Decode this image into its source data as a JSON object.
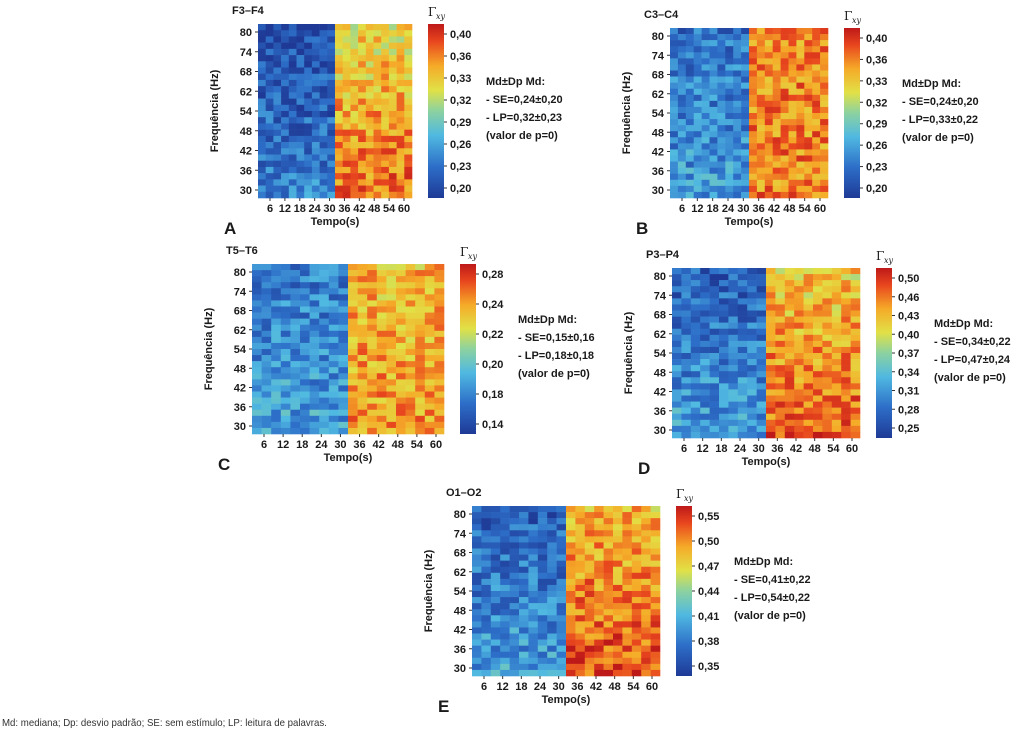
{
  "chart_data": [
    {
      "type": "heatmap",
      "panel": "A",
      "title": "F3–F4",
      "xlabel": "Tempo(s)",
      "ylabel": "Frequência (Hz)",
      "x_ticks": [
        "6",
        "12",
        "18",
        "24",
        "30",
        "36",
        "42",
        "48",
        "54",
        "60"
      ],
      "y_ticks": [
        "80",
        "74",
        "68",
        "62",
        "54",
        "48",
        "42",
        "36",
        "30"
      ],
      "colorbar_title": "Γ",
      "colorbar_subscript": "xy",
      "colorbar_ticks": [
        "0,40",
        "0,36",
        "0,33",
        "0,32",
        "0,29",
        "0,26",
        "0,23",
        "0,20"
      ],
      "colorbar_range": [
        0.2,
        0.42
      ],
      "stats": [
        "Md±Dp Md:",
        "- SE=0,24±0,20",
        "- LP=0,32±0,23",
        "(valor de p=0)"
      ],
      "mean_se": 0.24,
      "mean_lp": 0.32
    },
    {
      "type": "heatmap",
      "panel": "B",
      "title": "C3–C4",
      "xlabel": "Tempo(s)",
      "ylabel": "Frequência (Hz)",
      "x_ticks": [
        "6",
        "12",
        "18",
        "24",
        "30",
        "36",
        "42",
        "48",
        "54",
        "60"
      ],
      "y_ticks": [
        "80",
        "74",
        "68",
        "62",
        "54",
        "48",
        "42",
        "36",
        "30"
      ],
      "colorbar_title": "Γ",
      "colorbar_subscript": "xy",
      "colorbar_ticks": [
        "0,40",
        "0,36",
        "0,33",
        "0,32",
        "0,29",
        "0,26",
        "0,23",
        "0,20"
      ],
      "colorbar_range": [
        0.2,
        0.42
      ],
      "stats": [
        "Md±Dp Md:",
        "- SE=0,24±0,20",
        "- LP=0,33±0,22",
        "(valor de p=0)"
      ],
      "mean_se": 0.24,
      "mean_lp": 0.33
    },
    {
      "type": "heatmap",
      "panel": "C",
      "title": "T5–T6",
      "xlabel": "Tempo(s)",
      "ylabel": "Frequência (Hz)",
      "x_ticks": [
        "6",
        "12",
        "18",
        "24",
        "30",
        "36",
        "42",
        "48",
        "54",
        "60"
      ],
      "y_ticks": [
        "80",
        "74",
        "68",
        "62",
        "54",
        "48",
        "42",
        "36",
        "30"
      ],
      "colorbar_title": "Γ",
      "colorbar_subscript": "xy",
      "colorbar_ticks": [
        "0,28",
        "0,24",
        "0,22",
        "0,20",
        "0,18",
        "0,14"
      ],
      "colorbar_range": [
        0.13,
        0.29
      ],
      "stats": [
        "Md±Dp Md:",
        "- SE=0,15±0,16",
        "- LP=0,18±0,18",
        "(valor de p=0)"
      ],
      "mean_se": 0.15,
      "mean_lp": 0.18
    },
    {
      "type": "heatmap",
      "panel": "D",
      "title": "P3–P4",
      "xlabel": "Tempo(s)",
      "ylabel": "Frequência (Hz)",
      "x_ticks": [
        "6",
        "12",
        "18",
        "24",
        "30",
        "36",
        "42",
        "48",
        "54",
        "60"
      ],
      "y_ticks": [
        "80",
        "74",
        "68",
        "62",
        "54",
        "48",
        "42",
        "36",
        "30"
      ],
      "colorbar_title": "Γ",
      "colorbar_subscript": "xy",
      "colorbar_ticks": [
        "0,50",
        "0,46",
        "0,43",
        "0,40",
        "0,37",
        "0,34",
        "0,31",
        "0,28",
        "0,25"
      ],
      "colorbar_range": [
        0.24,
        0.52
      ],
      "stats": [
        "Md±Dp Md:",
        "- SE=0,34±0,22",
        "- LP=0,47±0,24",
        "(valor de p=0)"
      ],
      "mean_se": 0.34,
      "mean_lp": 0.47
    },
    {
      "type": "heatmap",
      "panel": "E",
      "title": "O1–O2",
      "xlabel": "Tempo(s)",
      "ylabel": "Frequência (Hz)",
      "x_ticks": [
        "6",
        "12",
        "18",
        "24",
        "30",
        "36",
        "42",
        "48",
        "54",
        "60"
      ],
      "y_ticks": [
        "80",
        "74",
        "68",
        "62",
        "54",
        "48",
        "42",
        "36",
        "30"
      ],
      "colorbar_title": "Γ",
      "colorbar_subscript": "xy",
      "colorbar_ticks": [
        "0,55",
        "0,50",
        "0,47",
        "0,44",
        "0,41",
        "0,38",
        "0,35"
      ],
      "colorbar_range": [
        0.33,
        0.57
      ],
      "stats": [
        "Md±Dp Md:",
        "- SE=0,41±0,22",
        "- LP=0,54±0,22",
        "(valor de p=0)"
      ],
      "mean_se": 0.41,
      "mean_lp": 0.54
    }
  ],
  "footnote": "Md: mediana; Dp: desvio padrão; SE: sem estímulo; LP: leitura de palavras.",
  "colors": {
    "low": "#1f3a9e",
    "mid": "#5fc8e0",
    "high": "#c81e1e"
  }
}
